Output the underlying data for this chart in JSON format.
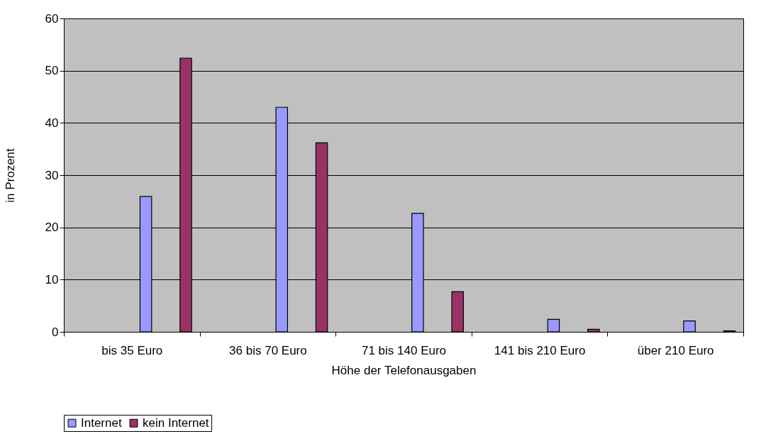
{
  "chart_data": {
    "type": "bar",
    "xlabel": "Höhe der Telefonausgaben",
    "ylabel": "in Prozent",
    "categories": [
      "bis 35 Euro",
      "36 bis 70 Euro",
      "71 bis 140 Euro",
      "141 bis 210 Euro",
      "über 210 Euro"
    ],
    "series": [
      {
        "name": "Internet",
        "color": "#9999ff",
        "values": [
          25.9,
          43.0,
          22.7,
          2.4,
          2.1
        ]
      },
      {
        "name": "kein Internet",
        "color": "#993366",
        "values": [
          52.4,
          36.2,
          7.7,
          0.5,
          0.2
        ]
      }
    ],
    "ylim": [
      0,
      60
    ],
    "yticks": [
      0,
      10,
      20,
      30,
      40,
      50,
      60
    ],
    "grid": "y",
    "legend": "bottom"
  }
}
